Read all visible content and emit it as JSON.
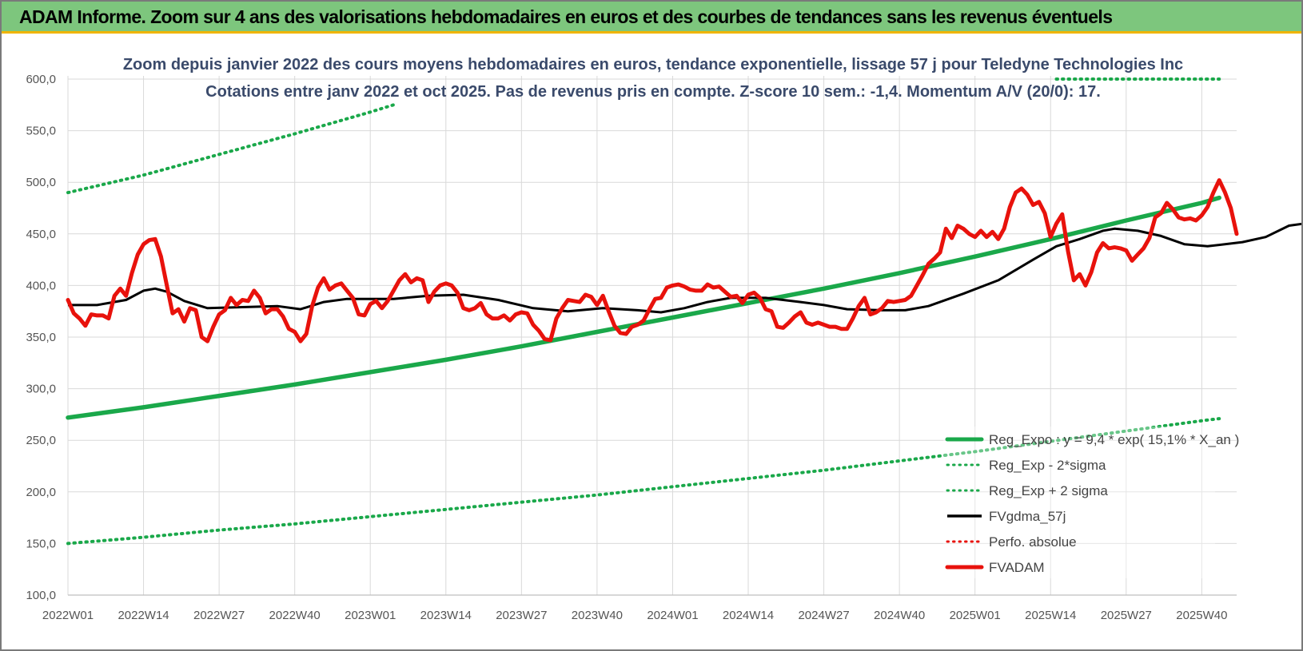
{
  "header": {
    "title": "ADAM Informe. Zoom sur 4 ans des valorisations hebdomadaires en euros et des courbes de tendances sans les revenus éventuels"
  },
  "chart_data": {
    "type": "line",
    "title_line1": "Zoom depuis janvier 2022 des cours moyens hebdomadaires en euros, tendance exponentielle, lissage 57 j pour Teledyne Technologies Inc",
    "title_line2": "Cotations entre janv 2022 et oct 2025. Pas de revenus pris en compte. Z-score 10 sem.: -1,4. Momentum A/V (20/0): 17.",
    "ylim": [
      100,
      600
    ],
    "y_ticks": [
      "100,0",
      "150,0",
      "200,0",
      "250,0",
      "300,0",
      "350,0",
      "400,0",
      "450,0",
      "500,0",
      "550,0",
      "600,0"
    ],
    "y_tick_values": [
      100,
      150,
      200,
      250,
      300,
      350,
      400,
      450,
      500,
      550,
      600
    ],
    "x_ticks": [
      "2022W01",
      "2022W14",
      "2022W27",
      "2022W40",
      "2023W01",
      "2023W14",
      "2023W27",
      "2023W40",
      "2024W01",
      "2024W14",
      "2024W27",
      "2024W40",
      "2025W01",
      "2025W14",
      "2025W27",
      "2025W40"
    ],
    "grid": true,
    "legend_position": "bottom-right",
    "series": [
      {
        "name": "Reg_Expo : y = 9,4 * exp( 15,1% * X_an )",
        "color": "#1aa84a",
        "style": "solid-thick",
        "knots": [
          [
            0,
            272
          ],
          [
            13,
            282
          ],
          [
            26,
            293
          ],
          [
            39,
            304
          ],
          [
            52,
            316
          ],
          [
            65,
            328
          ],
          [
            78,
            341
          ],
          [
            91,
            355
          ],
          [
            104,
            369
          ],
          [
            117,
            383
          ],
          [
            130,
            397
          ],
          [
            143,
            412
          ],
          [
            156,
            428
          ],
          [
            169,
            445
          ],
          [
            182,
            463
          ],
          [
            195,
            480
          ],
          [
            198,
            485
          ]
        ]
      },
      {
        "name": "Reg_Exp - 2*sigma",
        "color": "#1aa84a",
        "style": "dotted",
        "knots": [
          [
            0,
            150
          ],
          [
            13,
            156
          ],
          [
            26,
            163
          ],
          [
            39,
            169
          ],
          [
            52,
            176
          ],
          [
            65,
            183
          ],
          [
            78,
            190
          ],
          [
            91,
            197
          ],
          [
            104,
            205
          ],
          [
            117,
            213
          ],
          [
            130,
            221
          ],
          [
            143,
            230
          ],
          [
            156,
            239
          ],
          [
            169,
            249
          ],
          [
            182,
            259
          ],
          [
            195,
            269
          ],
          [
            198,
            271
          ]
        ]
      },
      {
        "name": "Reg_Exp + 2 sigma",
        "color": "#1aa84a",
        "style": "dotted",
        "knots": [
          [
            0,
            490
          ],
          [
            13,
            507
          ],
          [
            26,
            527
          ],
          [
            39,
            547
          ],
          [
            52,
            568
          ],
          [
            56,
            575
          ],
          [
            170,
            600
          ],
          [
            198,
            600
          ]
        ],
        "visible_x_ranges": [
          [
            0,
            56
          ],
          [
            170,
            198
          ]
        ]
      },
      {
        "name": "FVgdma_57j",
        "color": "#000000",
        "style": "solid",
        "knots": [
          [
            0,
            381
          ],
          [
            5,
            381
          ],
          [
            10,
            386
          ],
          [
            13,
            395
          ],
          [
            15,
            397
          ],
          [
            17,
            394
          ],
          [
            20,
            385
          ],
          [
            24,
            378
          ],
          [
            30,
            379
          ],
          [
            36,
            380
          ],
          [
            40,
            377
          ],
          [
            44,
            384
          ],
          [
            48,
            387
          ],
          [
            56,
            387
          ],
          [
            62,
            390
          ],
          [
            68,
            391
          ],
          [
            74,
            386
          ],
          [
            80,
            378
          ],
          [
            86,
            375
          ],
          [
            92,
            378
          ],
          [
            98,
            376
          ],
          [
            102,
            374
          ],
          [
            106,
            378
          ],
          [
            110,
            384
          ],
          [
            114,
            388
          ],
          [
            120,
            388
          ],
          [
            126,
            384
          ],
          [
            130,
            381
          ],
          [
            134,
            377
          ],
          [
            140,
            376
          ],
          [
            144,
            376
          ],
          [
            148,
            380
          ],
          [
            154,
            392
          ],
          [
            160,
            405
          ],
          [
            166,
            425
          ],
          [
            170,
            438
          ],
          [
            174,
            445
          ],
          [
            178,
            453
          ],
          [
            180,
            455
          ],
          [
            184,
            453
          ],
          [
            188,
            448
          ],
          [
            192,
            440
          ],
          [
            196,
            438
          ],
          [
            202,
            442
          ],
          [
            206,
            447
          ],
          [
            210,
            458
          ],
          [
            214,
            461
          ],
          [
            220,
            465
          ],
          [
            224,
            468
          ],
          [
            228,
            465
          ],
          [
            230,
            461
          ]
        ]
      },
      {
        "name": "Perfo. absolue",
        "color": "#e8120c",
        "style": "dotted",
        "knots": []
      },
      {
        "name": "FVADAM",
        "color": "#e8120c",
        "style": "solid-thick",
        "knots": [
          [
            0,
            386
          ],
          [
            1,
            373
          ],
          [
            2,
            368
          ],
          [
            3,
            361
          ],
          [
            4,
            372
          ],
          [
            5,
            371
          ],
          [
            6,
            371
          ],
          [
            7,
            368
          ],
          [
            8,
            390
          ],
          [
            9,
            397
          ],
          [
            10,
            390
          ],
          [
            11,
            412
          ],
          [
            12,
            430
          ],
          [
            13,
            440
          ],
          [
            14,
            444
          ],
          [
            15,
            445
          ],
          [
            16,
            428
          ],
          [
            17,
            400
          ],
          [
            18,
            373
          ],
          [
            19,
            377
          ],
          [
            20,
            365
          ],
          [
            21,
            378
          ],
          [
            22,
            376
          ],
          [
            23,
            350
          ],
          [
            24,
            346
          ],
          [
            25,
            360
          ],
          [
            26,
            372
          ],
          [
            27,
            376
          ],
          [
            28,
            388
          ],
          [
            29,
            381
          ],
          [
            30,
            386
          ],
          [
            31,
            385
          ],
          [
            32,
            395
          ],
          [
            33,
            388
          ],
          [
            34,
            373
          ],
          [
            35,
            377
          ],
          [
            36,
            377
          ],
          [
            37,
            370
          ],
          [
            38,
            358
          ],
          [
            39,
            355
          ],
          [
            40,
            346
          ],
          [
            41,
            353
          ],
          [
            42,
            380
          ],
          [
            43,
            398
          ],
          [
            44,
            407
          ],
          [
            45,
            396
          ],
          [
            46,
            400
          ],
          [
            47,
            402
          ],
          [
            48,
            395
          ],
          [
            49,
            388
          ],
          [
            50,
            372
          ],
          [
            51,
            371
          ],
          [
            52,
            382
          ],
          [
            53,
            385
          ],
          [
            54,
            378
          ],
          [
            55,
            385
          ],
          [
            56,
            395
          ],
          [
            57,
            405
          ],
          [
            58,
            411
          ],
          [
            59,
            403
          ],
          [
            60,
            407
          ],
          [
            61,
            405
          ],
          [
            62,
            384
          ],
          [
            63,
            394
          ],
          [
            64,
            400
          ],
          [
            65,
            402
          ],
          [
            66,
            400
          ],
          [
            67,
            393
          ],
          [
            68,
            378
          ],
          [
            69,
            376
          ],
          [
            70,
            378
          ],
          [
            71,
            383
          ],
          [
            72,
            372
          ],
          [
            73,
            368
          ],
          [
            74,
            368
          ],
          [
            75,
            371
          ],
          [
            76,
            366
          ],
          [
            77,
            372
          ],
          [
            78,
            374
          ],
          [
            79,
            373
          ],
          [
            80,
            362
          ],
          [
            81,
            356
          ],
          [
            82,
            348
          ],
          [
            83,
            347
          ],
          [
            84,
            368
          ],
          [
            85,
            378
          ],
          [
            86,
            386
          ],
          [
            87,
            385
          ],
          [
            88,
            384
          ],
          [
            89,
            391
          ],
          [
            90,
            389
          ],
          [
            91,
            381
          ],
          [
            92,
            390
          ],
          [
            93,
            375
          ],
          [
            94,
            361
          ],
          [
            95,
            354
          ],
          [
            96,
            353
          ],
          [
            97,
            360
          ],
          [
            98,
            362
          ],
          [
            99,
            366
          ],
          [
            100,
            377
          ],
          [
            101,
            387
          ],
          [
            102,
            388
          ],
          [
            103,
            398
          ],
          [
            104,
            400
          ],
          [
            105,
            401
          ],
          [
            106,
            399
          ],
          [
            107,
            396
          ],
          [
            108,
            395
          ],
          [
            109,
            395
          ],
          [
            110,
            401
          ],
          [
            111,
            398
          ],
          [
            112,
            399
          ],
          [
            113,
            394
          ],
          [
            114,
            389
          ],
          [
            115,
            390
          ],
          [
            116,
            383
          ],
          [
            117,
            391
          ],
          [
            118,
            393
          ],
          [
            119,
            388
          ],
          [
            120,
            377
          ],
          [
            121,
            375
          ],
          [
            122,
            360
          ],
          [
            123,
            359
          ],
          [
            124,
            364
          ],
          [
            125,
            370
          ],
          [
            126,
            374
          ],
          [
            127,
            364
          ],
          [
            128,
            362
          ],
          [
            129,
            364
          ],
          [
            130,
            362
          ],
          [
            131,
            360
          ],
          [
            132,
            360
          ],
          [
            133,
            358
          ],
          [
            134,
            358
          ],
          [
            135,
            368
          ],
          [
            136,
            380
          ],
          [
            137,
            388
          ],
          [
            138,
            372
          ],
          [
            139,
            374
          ],
          [
            140,
            378
          ],
          [
            141,
            385
          ],
          [
            142,
            384
          ],
          [
            143,
            385
          ],
          [
            144,
            386
          ],
          [
            145,
            390
          ],
          [
            146,
            400
          ],
          [
            147,
            410
          ],
          [
            148,
            421
          ],
          [
            149,
            426
          ],
          [
            150,
            432
          ],
          [
            151,
            455
          ],
          [
            152,
            446
          ],
          [
            153,
            458
          ],
          [
            154,
            455
          ],
          [
            155,
            450
          ],
          [
            156,
            447
          ],
          [
            157,
            453
          ],
          [
            158,
            447
          ],
          [
            159,
            452
          ],
          [
            160,
            445
          ],
          [
            161,
            455
          ],
          [
            162,
            476
          ],
          [
            163,
            490
          ],
          [
            164,
            494
          ],
          [
            165,
            488
          ],
          [
            166,
            478
          ],
          [
            167,
            481
          ],
          [
            168,
            470
          ],
          [
            169,
            447
          ],
          [
            170,
            460
          ],
          [
            171,
            469
          ],
          [
            172,
            433
          ],
          [
            173,
            405
          ],
          [
            174,
            411
          ],
          [
            175,
            400
          ],
          [
            176,
            413
          ],
          [
            177,
            432
          ],
          [
            178,
            441
          ],
          [
            179,
            436
          ],
          [
            180,
            437
          ],
          [
            181,
            436
          ],
          [
            182,
            434
          ],
          [
            183,
            424
          ],
          [
            184,
            430
          ],
          [
            185,
            436
          ],
          [
            186,
            446
          ],
          [
            187,
            466
          ],
          [
            188,
            470
          ],
          [
            189,
            480
          ],
          [
            190,
            474
          ],
          [
            191,
            466
          ],
          [
            192,
            464
          ],
          [
            193,
            465
          ],
          [
            194,
            463
          ],
          [
            195,
            468
          ],
          [
            196,
            476
          ],
          [
            197,
            490
          ],
          [
            198,
            502
          ],
          [
            199,
            490
          ],
          [
            200,
            475
          ],
          [
            201,
            450
          ]
        ]
      }
    ]
  }
}
